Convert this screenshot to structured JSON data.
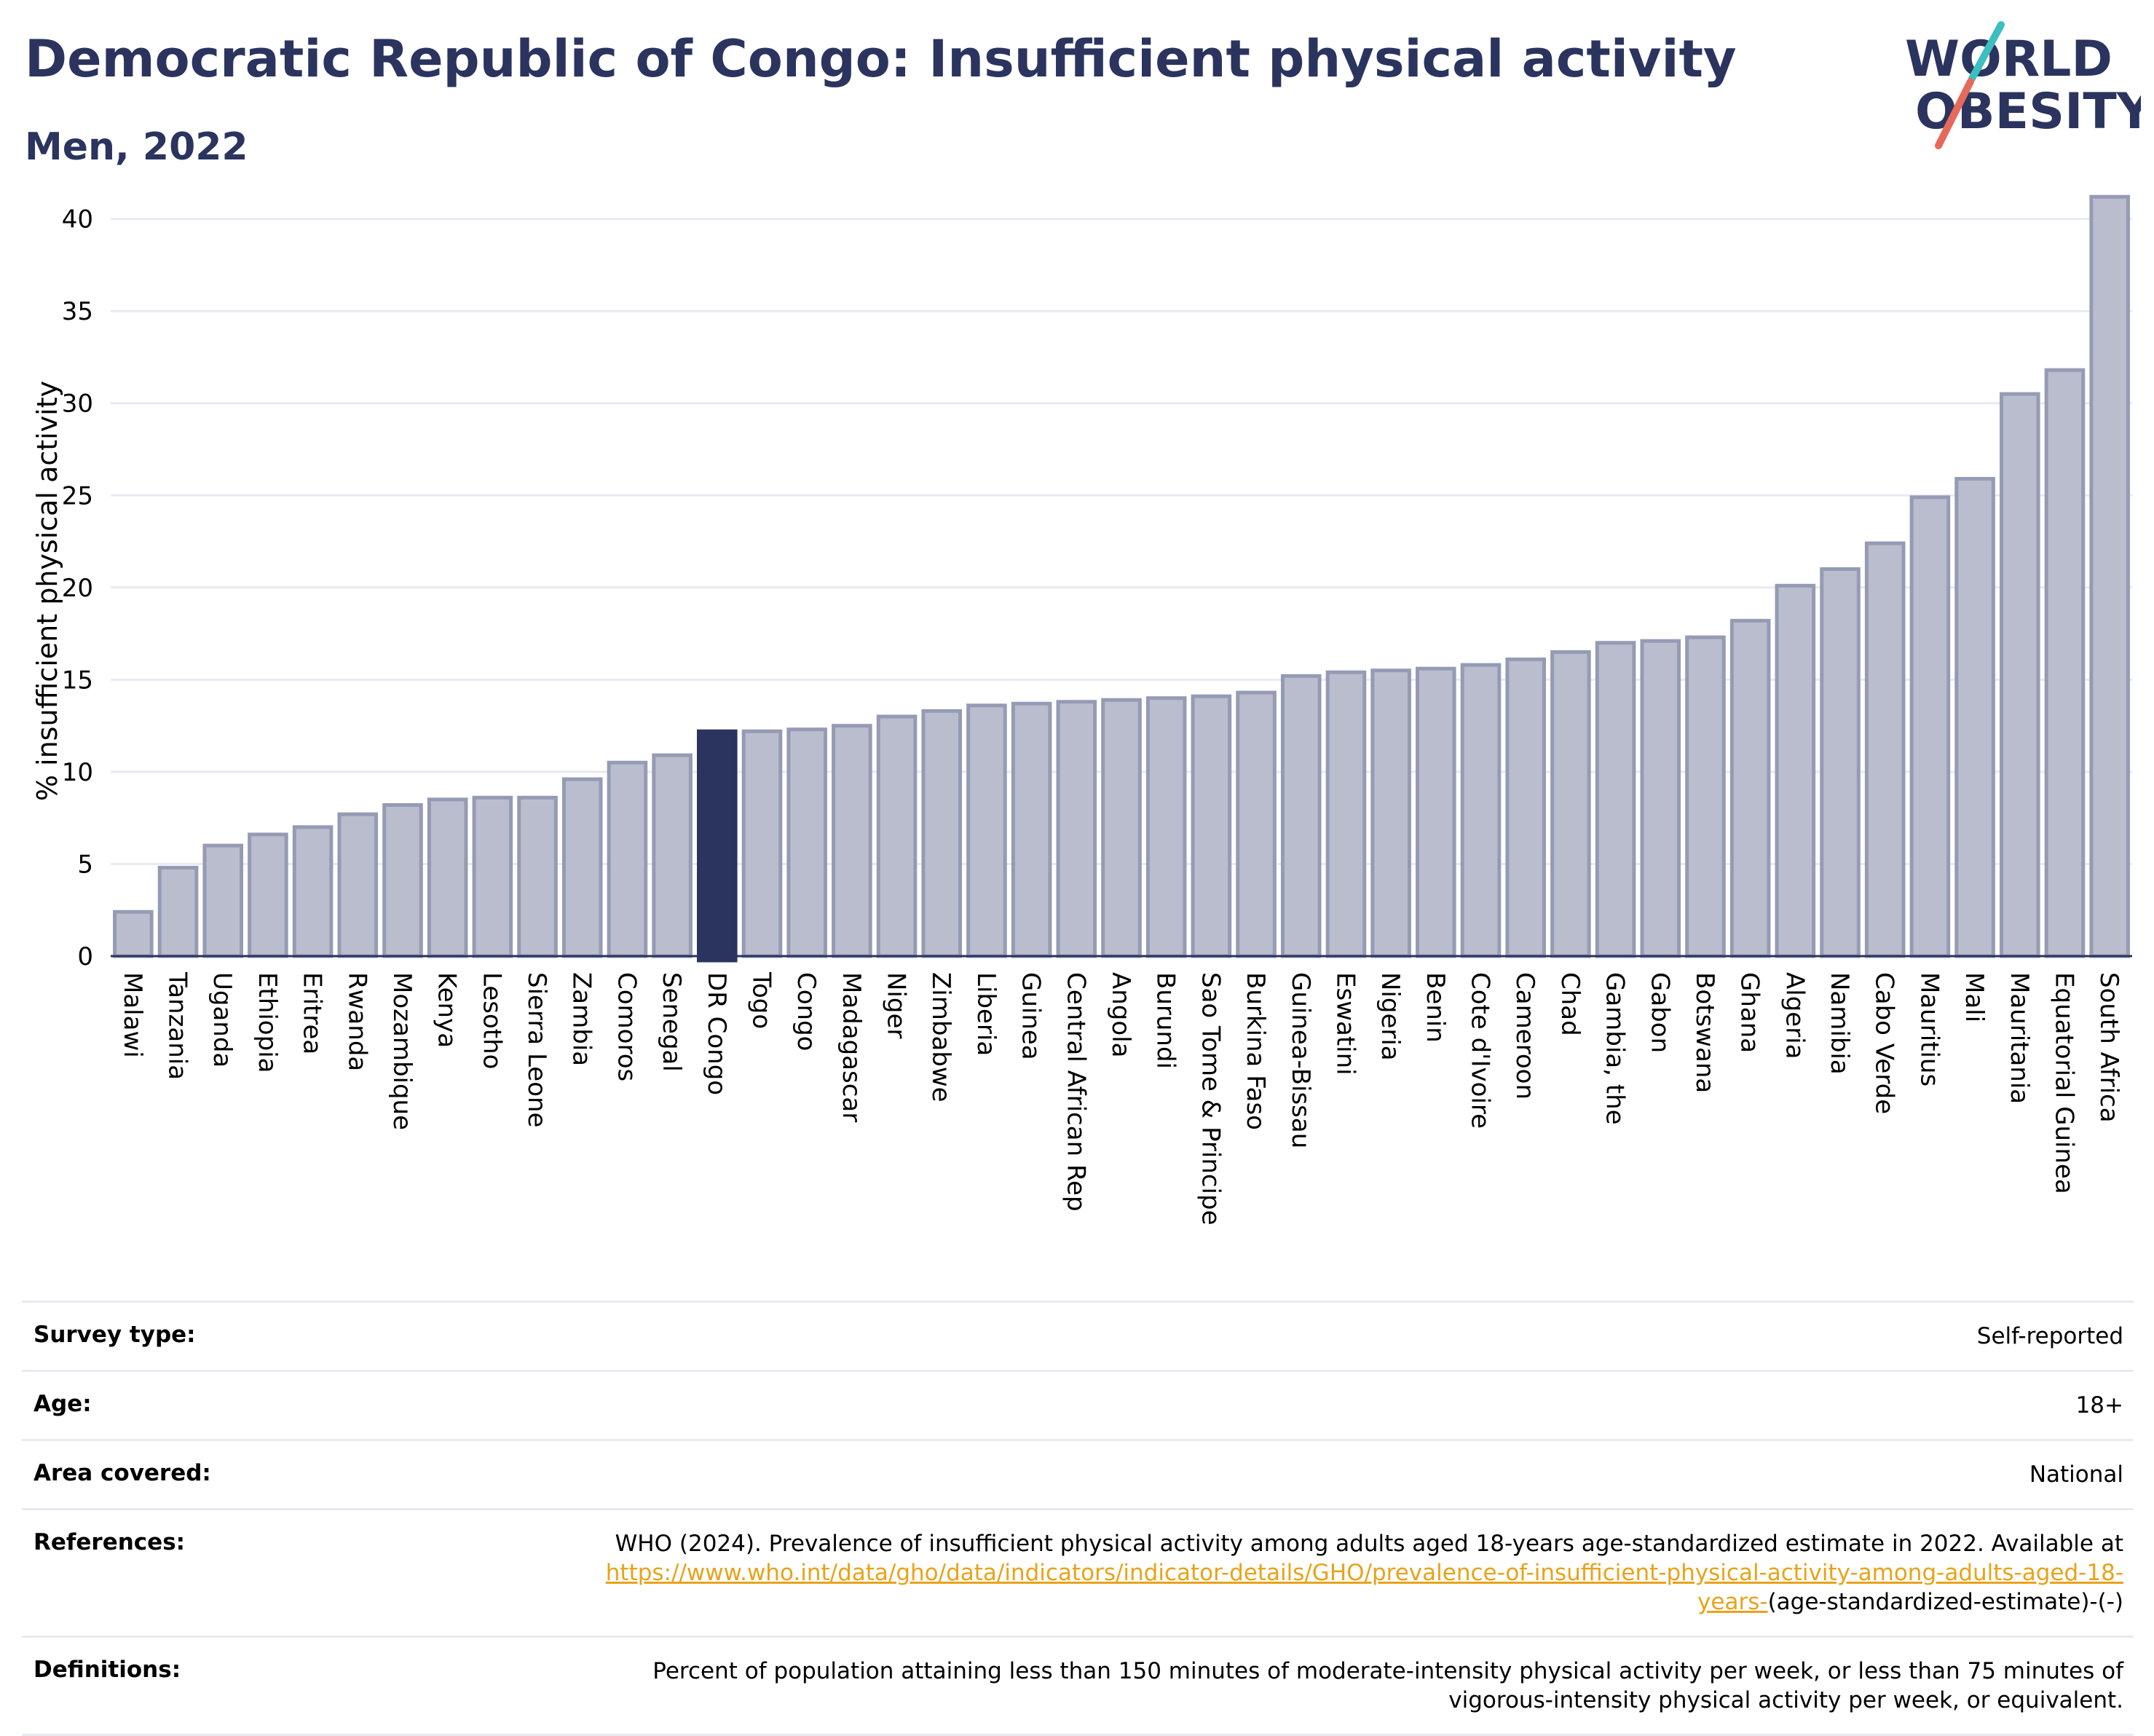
{
  "header": {
    "title": "Democratic Republic of Congo: Insufficient physical activity",
    "subtitle": "Men, 2022"
  },
  "logo": {
    "line1": "WORLD",
    "line2": "OBESITY"
  },
  "chart_data": {
    "type": "bar",
    "ylabel": "% insufficient physical activity",
    "ylim": [
      0,
      42
    ],
    "yticks": [
      0,
      5,
      10,
      15,
      20,
      25,
      30,
      35,
      40
    ],
    "grid": true,
    "highlight": "DR Congo",
    "colors": {
      "bar": "#b9bdcd",
      "bar_edge": "#959bb4",
      "highlight": "#2b345e",
      "grid": "#e8eaf2",
      "axis": "#2b345e"
    },
    "categories": [
      "Malawi",
      "Tanzania",
      "Uganda",
      "Ethiopia",
      "Eritrea",
      "Rwanda",
      "Mozambique",
      "Kenya",
      "Lesotho",
      "Sierra Leone",
      "Zambia",
      "Comoros",
      "Senegal",
      "DR Congo",
      "Togo",
      "Congo",
      "Madagascar",
      "Niger",
      "Zimbabwe",
      "Liberia",
      "Guinea",
      "Central African Rep",
      "Angola",
      "Burundi",
      "Sao Tome & Principe",
      "Burkina Faso",
      "Guinea-Bissau",
      "Eswatini",
      "Nigeria",
      "Benin",
      "Cote d'Ivoire",
      "Cameroon",
      "Chad",
      "Gambia, the",
      "Gabon",
      "Botswana",
      "Ghana",
      "Algeria",
      "Namibia",
      "Cabo Verde",
      "Mauritius",
      "Mali",
      "Mauritania",
      "Equatorial Guinea",
      "South Africa"
    ],
    "values": [
      2.4,
      4.8,
      6.0,
      6.6,
      7.0,
      7.7,
      8.2,
      8.5,
      8.6,
      8.6,
      9.6,
      10.5,
      10.9,
      12.2,
      12.2,
      12.3,
      12.5,
      13.0,
      13.3,
      13.6,
      13.7,
      13.8,
      13.9,
      14.0,
      14.1,
      14.3,
      15.2,
      15.4,
      15.5,
      15.6,
      15.8,
      16.1,
      16.5,
      17.0,
      17.1,
      17.3,
      18.2,
      20.1,
      21.0,
      22.4,
      24.9,
      25.9,
      30.5,
      31.8,
      41.2
    ]
  },
  "info": {
    "survey_label": "Survey type:",
    "survey_value": "Self-reported",
    "age_label": "Age:",
    "age_value": "18+",
    "area_label": "Area covered:",
    "area_value": "National",
    "references_label": "References:",
    "references_text": "WHO (2024). Prevalence of insufficient physical activity among adults aged 18-years age-standardized estimate in 2022. Available at",
    "references_link": "https://www.who.int/data/gho/data/indicators/indicator-details/GHO/prevalence-of-insufficient-physical-activity-among-adults-aged-18-years-",
    "references_suffix": "(age-standardized-estimate)-(-)",
    "definitions_label": "Definitions:",
    "definitions_value": "Percent of population attaining less than 150 minutes of moderate-intensity physical activity per week, or less than 75 minutes of vigorous-intensity physical activity per week, or equivalent."
  }
}
